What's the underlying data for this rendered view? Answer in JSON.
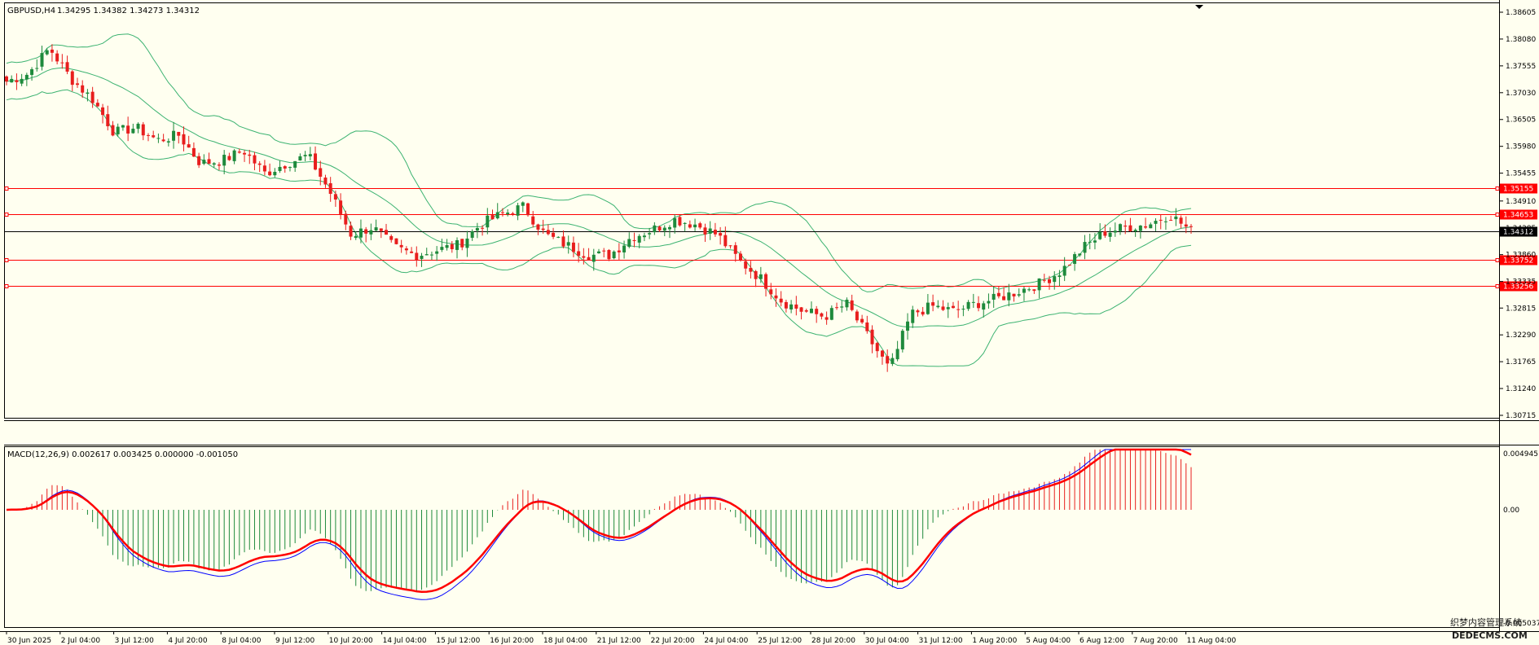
{
  "window": {
    "title": "GBPUSD,H4",
    "ohlc": "1.34295 1.34382 1.34273 1.34312"
  },
  "indicator": {
    "title": "MACD(12,26,9) 0.002617 0.003425 0.000000 -0.001050",
    "scale_top": "0.004945",
    "scale_zero": "0.00",
    "scale_bottom": "-0.005037"
  },
  "colors": {
    "background": "#fffff0",
    "bull": "#1e8a3c",
    "bear": "#e81e1e",
    "bands": "#3cb371",
    "hline": "#ff0000",
    "price_line": "#000000",
    "macd_line": "#0000ff",
    "signal_line": "#ff0000"
  },
  "price_axis": {
    "ticks": [
      "1.38605",
      "1.38080",
      "1.37555",
      "1.37030",
      "1.36505",
      "1.35980",
      "1.35455",
      "1.34910",
      "1.34385",
      "1.33860",
      "1.33335",
      "1.32815",
      "1.32290",
      "1.31765",
      "1.31240",
      "1.30715"
    ],
    "levels": [
      "1.35155",
      "1.34653",
      "1.34312",
      "1.33752",
      "1.33256"
    ]
  },
  "time_axis": [
    "30 Jun 2025",
    "2 Jul 04:00",
    "3 Jul 12:00",
    "4 Jul 20:00",
    "8 Jul 04:00",
    "9 Jul 12:00",
    "10 Jul 20:00",
    "14 Jul 04:00",
    "15 Jul 12:00",
    "16 Jul 20:00",
    "18 Jul 04:00",
    "21 Jul 12:00",
    "22 Jul 20:00",
    "24 Jul 04:00",
    "25 Jul 12:00",
    "28 Jul 20:00",
    "30 Jul 04:00",
    "31 Jul 12:00",
    "1 Aug 20:00",
    "5 Aug 04:00",
    "6 Aug 12:00",
    "7 Aug 20:00",
    "11 Aug 04:00"
  ],
  "watermark": "织梦内容管理系统\nDEDECMS.COM",
  "chart_data": {
    "type": "candlestick",
    "symbol": "GBPUSD",
    "timeframe": "H4",
    "ylim": [
      1.30715,
      1.38605
    ],
    "close_path": [
      1.3725,
      1.374,
      1.379,
      1.373,
      1.369,
      1.3625,
      1.3635,
      1.361,
      1.362,
      1.3565,
      1.357,
      1.359,
      1.3545,
      1.3565,
      1.358,
      1.351,
      1.3425,
      1.344,
      1.34,
      1.3385,
      1.3395,
      1.3405,
      1.3445,
      1.3465,
      1.348,
      1.3425,
      1.3405,
      1.3385,
      1.3385,
      1.342,
      1.3435,
      1.3455,
      1.3445,
      1.3425,
      1.3375,
      1.334,
      1.3295,
      1.3275,
      1.3265,
      1.329,
      1.3225,
      1.316,
      1.327,
      1.3285,
      1.3275,
      1.329,
      1.33,
      1.3315,
      1.333,
      1.3355,
      1.34,
      1.343,
      1.344,
      1.3445,
      1.3465,
      1.3432
    ]
  }
}
